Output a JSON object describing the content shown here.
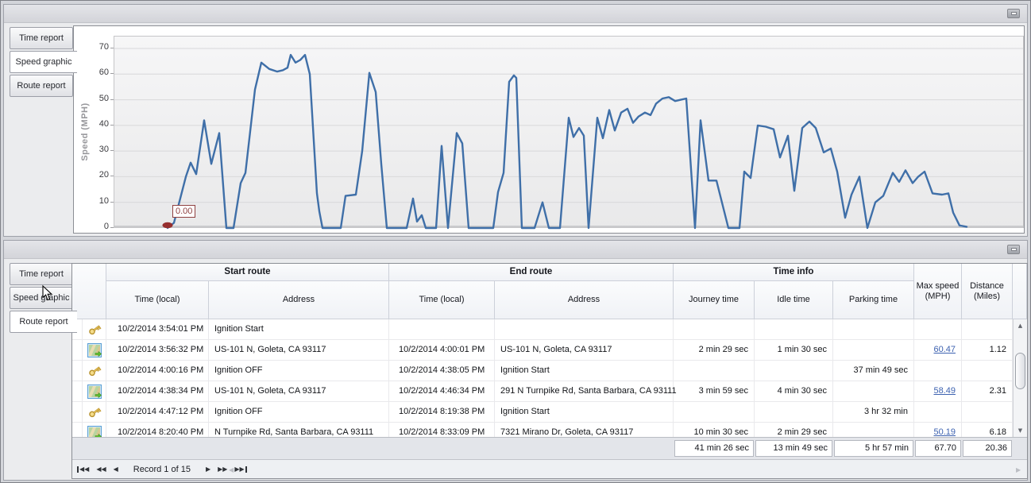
{
  "top_panel": {
    "tabs": [
      {
        "label": "Time report",
        "selected": false
      },
      {
        "label": "Speed graphic",
        "selected": true
      },
      {
        "label": "Route report",
        "selected": false
      }
    ]
  },
  "chart_data": {
    "type": "line",
    "title": "",
    "xlabel": "",
    "ylabel": "Speed (MPH)",
    "ylim": [
      0,
      72.5
    ],
    "yticks": [
      0,
      10,
      20,
      30,
      40,
      50,
      60,
      70
    ],
    "x_axis_labels_visible": false,
    "grid": "horizontal",
    "legend": "none",
    "line_color": "#3f6fa8",
    "plot_bg": "#f0f0f1",
    "annotation": {
      "label": "0.00",
      "color": "#8f4040"
    },
    "start_marker": {
      "x": 67,
      "value": 0,
      "color": "#962f2f"
    },
    "x_encoding": "plot-relative px, time axis unlabeled, plot width 1144",
    "points": [
      [
        67,
        0
      ],
      [
        75,
        2
      ],
      [
        90,
        20
      ],
      [
        96,
        25.5
      ],
      [
        103,
        21
      ],
      [
        113,
        42
      ],
      [
        122,
        25
      ],
      [
        132,
        37
      ],
      [
        141,
        0
      ],
      [
        150,
        0
      ],
      [
        159,
        17.5
      ],
      [
        165,
        21.5
      ],
      [
        177,
        54
      ],
      [
        185,
        64.5
      ],
      [
        195,
        62
      ],
      [
        205,
        61
      ],
      [
        212,
        61.5
      ],
      [
        218,
        62.5
      ],
      [
        222,
        67.5
      ],
      [
        228,
        64.5
      ],
      [
        234,
        65.5
      ],
      [
        240,
        67.5
      ],
      [
        246,
        60
      ],
      [
        255,
        13.5
      ],
      [
        258,
        6.5
      ],
      [
        262,
        0
      ],
      [
        285,
        0
      ],
      [
        291,
        12.5
      ],
      [
        304,
        13
      ],
      [
        312,
        30
      ],
      [
        321,
        60.5
      ],
      [
        329,
        53
      ],
      [
        336,
        25
      ],
      [
        343,
        0
      ],
      [
        368,
        0
      ],
      [
        376,
        11.5
      ],
      [
        381,
        2.5
      ],
      [
        387,
        5
      ],
      [
        392,
        0
      ],
      [
        405,
        0
      ],
      [
        412,
        32
      ],
      [
        420,
        0
      ],
      [
        431,
        37
      ],
      [
        438,
        33
      ],
      [
        446,
        0
      ],
      [
        477,
        0
      ],
      [
        483,
        14
      ],
      [
        490,
        21.5
      ],
      [
        497,
        57
      ],
      [
        503,
        59.5
      ],
      [
        506,
        58.5
      ],
      [
        513,
        0
      ],
      [
        529,
        0
      ],
      [
        539,
        10
      ],
      [
        547,
        0
      ],
      [
        561,
        0
      ],
      [
        572,
        43
      ],
      [
        578,
        35.5
      ],
      [
        585,
        39
      ],
      [
        591,
        36
      ],
      [
        597,
        0
      ],
      [
        608,
        43
      ],
      [
        615,
        35
      ],
      [
        623,
        46
      ],
      [
        630,
        38
      ],
      [
        638,
        45
      ],
      [
        646,
        46.5
      ],
      [
        653,
        41
      ],
      [
        660,
        43.5
      ],
      [
        668,
        45
      ],
      [
        675,
        44
      ],
      [
        682,
        48.5
      ],
      [
        690,
        50.5
      ],
      [
        698,
        51
      ],
      [
        706,
        49.5
      ],
      [
        713,
        50
      ],
      [
        720,
        50.5
      ],
      [
        731,
        0
      ],
      [
        738,
        42
      ],
      [
        748,
        18.5
      ],
      [
        758,
        18.5
      ],
      [
        773,
        0
      ],
      [
        787,
        0
      ],
      [
        793,
        22
      ],
      [
        801,
        19.5
      ],
      [
        810,
        40
      ],
      [
        820,
        39.5
      ],
      [
        830,
        38.5
      ],
      [
        838,
        27.5
      ],
      [
        848,
        36
      ],
      [
        856,
        14.5
      ],
      [
        866,
        39
      ],
      [
        875,
        41.5
      ],
      [
        883,
        39
      ],
      [
        893,
        29.5
      ],
      [
        902,
        31
      ],
      [
        910,
        22
      ],
      [
        920,
        4
      ],
      [
        928,
        13
      ],
      [
        938,
        20
      ],
      [
        948,
        0
      ],
      [
        958,
        10
      ],
      [
        968,
        12.5
      ],
      [
        980,
        21.5
      ],
      [
        988,
        18
      ],
      [
        996,
        22.5
      ],
      [
        1005,
        17.5
      ],
      [
        1012,
        20
      ],
      [
        1020,
        22
      ],
      [
        1030,
        13.5
      ],
      [
        1042,
        13
      ],
      [
        1050,
        13.5
      ],
      [
        1056,
        6
      ],
      [
        1064,
        1
      ],
      [
        1073,
        0.5
      ]
    ]
  },
  "bottom_panel": {
    "tabs": [
      {
        "label": "Time report",
        "selected": false
      },
      {
        "label": "Speed graphic",
        "selected": false
      },
      {
        "label": "Route report",
        "selected": true
      }
    ],
    "table": {
      "group_headers": [
        "Start route",
        "End route",
        "Time info"
      ],
      "columns": {
        "start_time": "Time (local)",
        "start_address": "Address",
        "end_time": "Time (local)",
        "end_address": "Address",
        "journey_time": "Journey time",
        "idle_time": "Idle time",
        "parking_time": "Parking time",
        "max_speed": "Max speed (MPH)",
        "distance": "Distance (Miles)"
      },
      "rows": [
        {
          "icon": "key",
          "start_time": "10/2/2014 3:54:01 PM",
          "start_address": "Ignition Start",
          "end_time": "",
          "end_address": "",
          "journey_time": "",
          "idle_time": "",
          "parking_time": "",
          "max_speed": "",
          "distance": ""
        },
        {
          "icon": "route",
          "start_time": "10/2/2014 3:56:32 PM",
          "start_address": "US-101 N, Goleta, CA 93117",
          "end_time": "10/2/2014 4:00:01 PM",
          "end_address": "US-101 N, Goleta, CA 93117",
          "journey_time": "2 min 29 sec",
          "idle_time": "1 min 30 sec",
          "parking_time": "",
          "max_speed": "60.47",
          "distance": "1.12"
        },
        {
          "icon": "key",
          "start_time": "10/2/2014 4:00:16 PM",
          "start_address": "Ignition OFF",
          "end_time": "10/2/2014 4:38:05 PM",
          "end_address": "Ignition Start",
          "journey_time": "",
          "idle_time": "",
          "parking_time": "37 min 49 sec",
          "max_speed": "",
          "distance": ""
        },
        {
          "icon": "route",
          "start_time": "10/2/2014 4:38:34 PM",
          "start_address": "US-101 N, Goleta, CA 93117",
          "end_time": "10/2/2014 4:46:34 PM",
          "end_address": "291 N Turnpike Rd, Santa Barbara, CA 93111",
          "journey_time": "3 min 59 sec",
          "idle_time": "4 min 30 sec",
          "parking_time": "",
          "max_speed": "58.49",
          "distance": "2.31"
        },
        {
          "icon": "key",
          "start_time": "10/2/2014 4:47:12 PM",
          "start_address": "Ignition OFF",
          "end_time": "10/2/2014 8:19:38 PM",
          "end_address": "Ignition Start",
          "journey_time": "",
          "idle_time": "",
          "parking_time": "3 hr 32 min",
          "max_speed": "",
          "distance": ""
        },
        {
          "icon": "route",
          "start_time": "10/2/2014 8:20:40 PM",
          "start_address": "N Turnpike Rd, Santa Barbara, CA 93111",
          "end_time": "10/2/2014 8:33:09 PM",
          "end_address": "7321 Mirano Dr, Goleta, CA 93117",
          "journey_time": "10 min 30 sec",
          "idle_time": "2 min 29 sec",
          "parking_time": "",
          "max_speed": "50.19",
          "distance": "6.18"
        }
      ],
      "summary": {
        "journey_time": "41 min 26 sec",
        "idle_time": "13 min 49 sec",
        "parking_time": "5 hr 57 min",
        "max_speed": "67.70",
        "distance": "20.36"
      },
      "navigator": {
        "record_text": "Record 1 of 15"
      }
    }
  },
  "colors": {
    "line": "#3f6fa8",
    "annotation": "#8f4040",
    "link": "#3d62b0",
    "panel_bg": "#ebecee",
    "summary_bg": "#e3e5ea"
  }
}
